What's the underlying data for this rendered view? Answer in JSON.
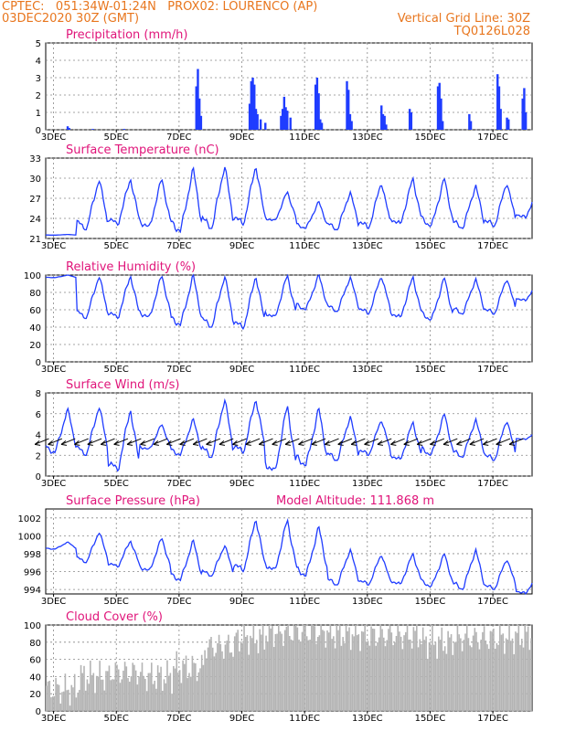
{
  "header": {
    "line1_left": "CPTEC:   051:34W-01:24N   PROX02: LOURENCO (AP)",
    "line2_left": "03DEC2020 30Z (GMT)",
    "line2_right": "Vertical Grid Line: 30Z",
    "line3_right": "TQ0126L028"
  },
  "colors": {
    "header": "#e8761e",
    "title": "#e0157a",
    "series": "#1f3cff",
    "cloud": "#b4b4b4"
  },
  "x_ticks": [
    "3DEC",
    "5DEC",
    "7DEC",
    "9DEC",
    "11DEC",
    "13DEC",
    "15DEC",
    "17DEC"
  ],
  "chart_data": [
    {
      "type": "bar",
      "title": "Precipitation (mm/h)",
      "ylim": [
        0,
        5
      ],
      "yticks": [
        0,
        1,
        2,
        3,
        4,
        5
      ],
      "x_range_days": [
        3,
        18.5
      ],
      "points": [
        [
          3.7,
          0.2
        ],
        [
          3.75,
          0.1
        ],
        [
          4.5,
          0.05
        ],
        [
          5.5,
          0.05
        ],
        [
          7.8,
          2.5
        ],
        [
          7.85,
          3.5
        ],
        [
          7.9,
          1.8
        ],
        [
          7.95,
          0.8
        ],
        [
          9.5,
          1.5
        ],
        [
          9.55,
          2.8
        ],
        [
          9.6,
          3.0
        ],
        [
          9.65,
          2.6
        ],
        [
          9.7,
          1.2
        ],
        [
          9.75,
          0.9
        ],
        [
          9.85,
          0.6
        ],
        [
          10.0,
          0.4
        ],
        [
          10.5,
          0.8
        ],
        [
          10.55,
          1.2
        ],
        [
          10.6,
          1.9
        ],
        [
          10.65,
          1.3
        ],
        [
          10.7,
          1.1
        ],
        [
          10.8,
          0.7
        ],
        [
          11.6,
          2.6
        ],
        [
          11.65,
          3.0
        ],
        [
          11.7,
          2.1
        ],
        [
          11.75,
          0.6
        ],
        [
          11.8,
          0.4
        ],
        [
          12.6,
          2.8
        ],
        [
          12.65,
          2.3
        ],
        [
          12.7,
          0.9
        ],
        [
          12.75,
          0.5
        ],
        [
          13.7,
          1.4
        ],
        [
          13.75,
          0.9
        ],
        [
          13.8,
          0.8
        ],
        [
          13.85,
          0.3
        ],
        [
          14.6,
          1.2
        ],
        [
          14.65,
          1.0
        ],
        [
          15.5,
          2.5
        ],
        [
          15.55,
          2.7
        ],
        [
          15.6,
          1.8
        ],
        [
          15.65,
          0.5
        ],
        [
          16.5,
          0.9
        ],
        [
          16.55,
          0.5
        ],
        [
          17.4,
          3.2
        ],
        [
          17.45,
          2.5
        ],
        [
          17.5,
          1.2
        ],
        [
          17.7,
          0.7
        ],
        [
          17.75,
          0.6
        ],
        [
          18.2,
          1.8
        ],
        [
          18.25,
          2.4
        ],
        [
          18.3,
          1.0
        ]
      ]
    },
    {
      "type": "line",
      "title": "Surface Temperature (nC)",
      "ylim": [
        21,
        33
      ],
      "yticks": [
        21,
        24,
        27,
        30,
        33
      ],
      "period_days": 1,
      "daily": [
        {
          "day": 3,
          "min": 21.5,
          "max": 21.6
        },
        {
          "day": 4,
          "min": 22.3,
          "max": 30.0
        },
        {
          "day": 5,
          "min": 23.0,
          "max": 30.0
        },
        {
          "day": 6,
          "min": 22.5,
          "max": 30.0
        },
        {
          "day": 7,
          "min": 22.0,
          "max": 31.5
        },
        {
          "day": 8,
          "min": 22.5,
          "max": 32.0
        },
        {
          "day": 9,
          "min": 23.0,
          "max": 32.0
        },
        {
          "day": 10,
          "min": 23.5,
          "max": 28.0
        },
        {
          "day": 11,
          "min": 22.5,
          "max": 26.5
        },
        {
          "day": 12,
          "min": 22.3,
          "max": 28.0
        },
        {
          "day": 13,
          "min": 22.5,
          "max": 29.5
        },
        {
          "day": 14,
          "min": 23.0,
          "max": 30.0
        },
        {
          "day": 15,
          "min": 22.8,
          "max": 30.0
        },
        {
          "day": 16,
          "min": 22.5,
          "max": 29.0
        },
        {
          "day": 17,
          "min": 22.8,
          "max": 29.5
        },
        {
          "day": 18,
          "min": 24.0,
          "max": 29.0
        }
      ]
    },
    {
      "type": "line",
      "title": "Relative Humidity (%)",
      "ylim": [
        0,
        100
      ],
      "yticks": [
        0,
        20,
        40,
        60,
        80,
        100
      ],
      "daily": [
        {
          "day": 3,
          "min": 97,
          "max": 100
        },
        {
          "day": 4,
          "min": 50,
          "max": 100
        },
        {
          "day": 5,
          "min": 50,
          "max": 100
        },
        {
          "day": 6,
          "min": 50,
          "max": 100
        },
        {
          "day": 7,
          "min": 42,
          "max": 100
        },
        {
          "day": 8,
          "min": 40,
          "max": 100
        },
        {
          "day": 9,
          "min": 38,
          "max": 100
        },
        {
          "day": 10,
          "min": 50,
          "max": 100
        },
        {
          "day": 11,
          "min": 60,
          "max": 100
        },
        {
          "day": 12,
          "min": 58,
          "max": 98
        },
        {
          "day": 13,
          "min": 55,
          "max": 100
        },
        {
          "day": 14,
          "min": 50,
          "max": 98
        },
        {
          "day": 15,
          "min": 48,
          "max": 97
        },
        {
          "day": 16,
          "min": 55,
          "max": 96
        },
        {
          "day": 17,
          "min": 55,
          "max": 97
        },
        {
          "day": 18,
          "min": 70,
          "max": 95
        }
      ]
    },
    {
      "type": "line",
      "title": "Surface Wind (m/s)",
      "ylim": [
        0,
        8
      ],
      "yticks": [
        0,
        2,
        4,
        6,
        8
      ],
      "daily": [
        {
          "day": 3,
          "min": 2.2,
          "max": 6.5
        },
        {
          "day": 4,
          "min": 2.0,
          "max": 6.8
        },
        {
          "day": 5,
          "min": 0.5,
          "max": 6.5
        },
        {
          "day": 6,
          "min": 2.5,
          "max": 5.0
        },
        {
          "day": 7,
          "min": 2.0,
          "max": 5.5
        },
        {
          "day": 8,
          "min": 1.8,
          "max": 7.5
        },
        {
          "day": 9,
          "min": 2.2,
          "max": 7.5
        },
        {
          "day": 10,
          "min": 0.3,
          "max": 6.8
        },
        {
          "day": 11,
          "min": 1.0,
          "max": 6.5
        },
        {
          "day": 12,
          "min": 1.5,
          "max": 5.8
        },
        {
          "day": 13,
          "min": 2.0,
          "max": 5.5
        },
        {
          "day": 14,
          "min": 1.5,
          "max": 5.2
        },
        {
          "day": 15,
          "min": 2.0,
          "max": 6.0
        },
        {
          "day": 16,
          "min": 1.8,
          "max": 5.5
        },
        {
          "day": 17,
          "min": 1.5,
          "max": 5.5
        },
        {
          "day": 18,
          "min": 3.5,
          "max": 4.5
        }
      ],
      "wind_vector_direction": "from northeast"
    },
    {
      "type": "line",
      "title": "Surface Pressure (hPa)",
      "annotation": "Model Altitude: 111.868  m",
      "ylim": [
        993.5,
        1003
      ],
      "yticks": [
        994,
        996,
        998,
        1000,
        1002
      ],
      "daily": [
        {
          "day": 3,
          "min": 998.5,
          "max": 999.3
        },
        {
          "day": 4,
          "min": 997.0,
          "max": 1000.5
        },
        {
          "day": 5,
          "min": 996.5,
          "max": 999.5
        },
        {
          "day": 6,
          "min": 996.0,
          "max": 999.8
        },
        {
          "day": 7,
          "min": 995.0,
          "max": 999.5
        },
        {
          "day": 8,
          "min": 995.5,
          "max": 999.0
        },
        {
          "day": 9,
          "min": 996.0,
          "max": 1002.0
        },
        {
          "day": 10,
          "min": 996.0,
          "max": 1001.8
        },
        {
          "day": 11,
          "min": 995.5,
          "max": 1001.0
        },
        {
          "day": 12,
          "min": 994.5,
          "max": 998.5
        },
        {
          "day": 13,
          "min": 994.5,
          "max": 998.0
        },
        {
          "day": 14,
          "min": 994.5,
          "max": 998.0
        },
        {
          "day": 15,
          "min": 994.3,
          "max": 998.0
        },
        {
          "day": 16,
          "min": 994.0,
          "max": 998.5
        },
        {
          "day": 17,
          "min": 994.0,
          "max": 997.5
        },
        {
          "day": 18,
          "min": 993.5,
          "max": 996.0
        }
      ]
    },
    {
      "type": "area",
      "title": "Cloud Cover (%)",
      "ylim": [
        0,
        100
      ],
      "yticks": [
        0,
        20,
        40,
        60,
        80,
        100
      ],
      "daily": [
        {
          "day": 3,
          "mean": 25
        },
        {
          "day": 4,
          "mean": 40
        },
        {
          "day": 5,
          "mean": 45
        },
        {
          "day": 6,
          "mean": 40
        },
        {
          "day": 7,
          "mean": 50
        },
        {
          "day": 8,
          "mean": 75
        },
        {
          "day": 9,
          "mean": 85
        },
        {
          "day": 10,
          "mean": 92
        },
        {
          "day": 11,
          "mean": 92
        },
        {
          "day": 12,
          "mean": 90
        },
        {
          "day": 13,
          "mean": 88
        },
        {
          "day": 14,
          "mean": 88
        },
        {
          "day": 15,
          "mean": 80
        },
        {
          "day": 16,
          "mean": 85
        },
        {
          "day": 17,
          "mean": 85
        },
        {
          "day": 18,
          "mean": 88
        }
      ]
    }
  ]
}
